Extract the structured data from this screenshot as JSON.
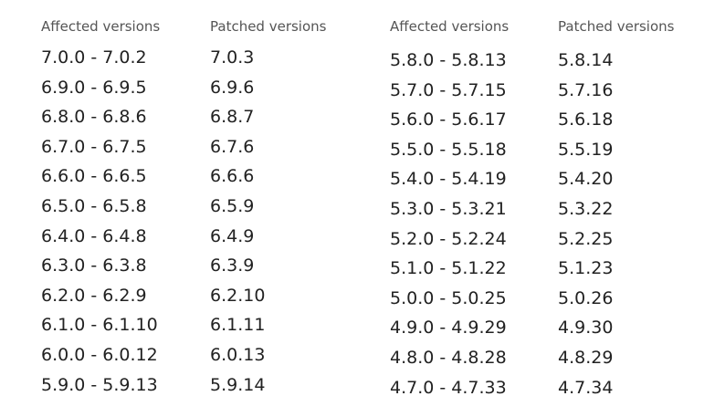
{
  "tables": [
    {
      "headers": [
        "Affected versions",
        "Patched versions"
      ],
      "rows": [
        [
          "7.0.0 - 7.0.2",
          "7.0.3"
        ],
        [
          "6.9.0 - 6.9.5",
          "6.9.6"
        ],
        [
          "6.8.0 - 6.8.6",
          "6.8.7"
        ],
        [
          "6.7.0 - 6.7.5",
          "6.7.6"
        ],
        [
          "6.6.0 - 6.6.5",
          "6.6.6"
        ],
        [
          "6.5.0 - 6.5.8",
          "6.5.9"
        ],
        [
          "6.4.0 - 6.4.8",
          "6.4.9"
        ],
        [
          "6.3.0 - 6.3.8",
          "6.3.9"
        ],
        [
          "6.2.0 - 6.2.9",
          "6.2.10"
        ],
        [
          "6.1.0 - 6.1.10",
          "6.1.11"
        ],
        [
          "6.0.0 - 6.0.12",
          "6.0.13"
        ],
        [
          "5.9.0 - 5.9.13",
          "5.9.14"
        ]
      ]
    },
    {
      "headers": [
        "Affected versions",
        "Patched versions"
      ],
      "rows": [
        [
          "5.8.0 - 5.8.13",
          "5.8.14"
        ],
        [
          "5.7.0 - 5.7.15",
          "5.7.16"
        ],
        [
          "5.6.0 - 5.6.17",
          "5.6.18"
        ],
        [
          "5.5.0 - 5.5.18",
          "5.5.19"
        ],
        [
          "5.4.0 - 5.4.19",
          "5.4.20"
        ],
        [
          "5.3.0 - 5.3.21",
          "5.3.22"
        ],
        [
          "5.2.0 - 5.2.24",
          "5.2.25"
        ],
        [
          "5.1.0 - 5.1.22",
          "5.1.23"
        ],
        [
          "5.0.0 - 5.0.25",
          "5.0.26"
        ],
        [
          "4.9.0 - 4.9.29",
          "4.9.30"
        ],
        [
          "4.8.0 - 4.8.28",
          "4.8.29"
        ],
        [
          "4.7.0 - 4.7.33",
          "4.7.34"
        ]
      ]
    }
  ]
}
